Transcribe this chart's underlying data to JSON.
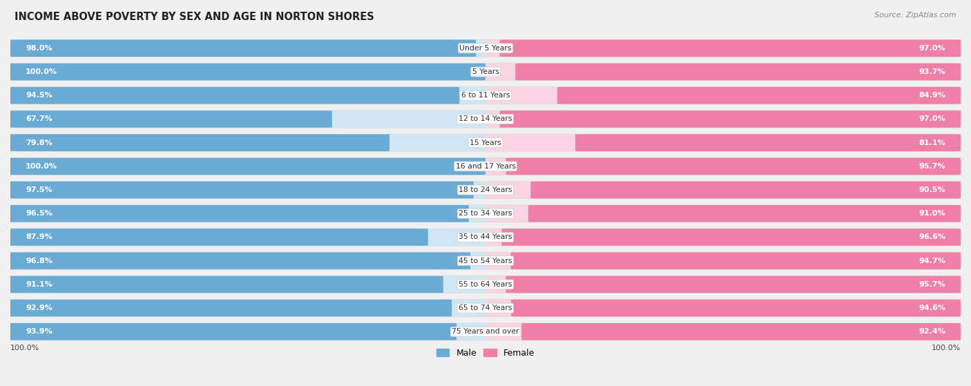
{
  "title": "INCOME ABOVE POVERTY BY SEX AND AGE IN NORTON SHORES",
  "source": "Source: ZipAtlas.com",
  "categories": [
    "Under 5 Years",
    "5 Years",
    "6 to 11 Years",
    "12 to 14 Years",
    "15 Years",
    "16 and 17 Years",
    "18 to 24 Years",
    "25 to 34 Years",
    "35 to 44 Years",
    "45 to 54 Years",
    "55 to 64 Years",
    "65 to 74 Years",
    "75 Years and over"
  ],
  "male": [
    98.0,
    100.0,
    94.5,
    67.7,
    79.8,
    100.0,
    97.5,
    96.5,
    87.9,
    96.8,
    91.1,
    92.9,
    93.9
  ],
  "female": [
    97.0,
    93.7,
    84.9,
    97.0,
    81.1,
    95.7,
    90.5,
    91.0,
    96.6,
    94.7,
    95.7,
    94.6,
    92.4
  ],
  "male_color": "#6aabd6",
  "female_color": "#f07fa8",
  "male_light": "#d0e6f5",
  "female_light": "#fad4e2",
  "bg_color": "#f0f0f0",
  "row_bg": "#ffffff",
  "row_border": "#d8d8d8",
  "max_val": 100.0,
  "legend_male": "Male",
  "legend_female": "Female"
}
